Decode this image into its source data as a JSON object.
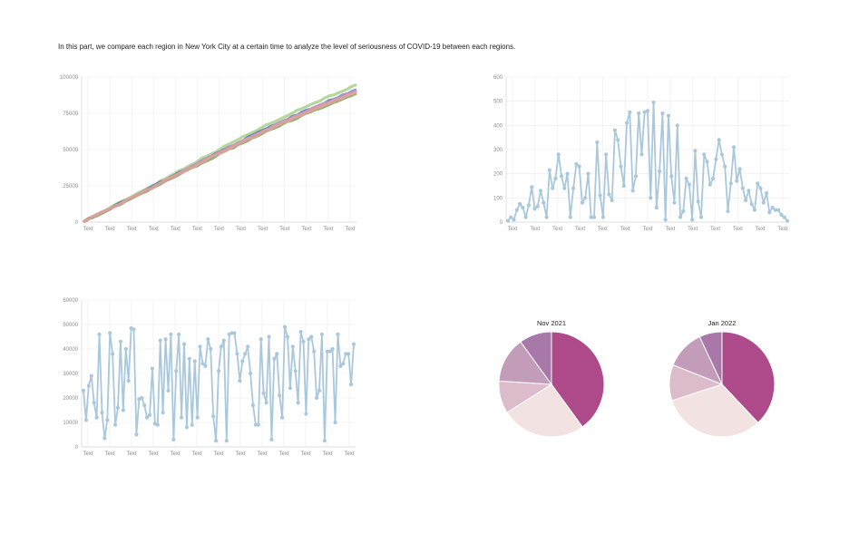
{
  "intro_text": "In this part, we compare each region in New York City at a certain time to analyze the level of seriousness of COVID-19 between each regions.",
  "chart_data": [
    {
      "type": "line",
      "x_tick_labels": [
        "Text",
        "Text",
        "Text",
        "Text",
        "Text",
        "Text",
        "Text",
        "Text",
        "Text",
        "Text",
        "Text",
        "Text",
        "Text"
      ],
      "y_ticks": [
        0,
        25000,
        50000,
        75000,
        100000
      ],
      "y_tick_labels": [
        "0",
        "25000",
        "50000",
        "75000",
        "100000"
      ],
      "ylim": [
        0,
        100000
      ],
      "grid": true,
      "n_points": 61,
      "series": [
        {
          "color": "#a8d08d",
          "start": 600,
          "end": 94500
        },
        {
          "color": "#4b74b3",
          "start": 400,
          "end": 91000
        },
        {
          "color": "#c89ac6",
          "start": 300,
          "end": 90500
        },
        {
          "color": "#7fa65a",
          "start": 200,
          "end": 88500
        },
        {
          "color": "#e8a0a0",
          "start": 500,
          "end": 89500
        }
      ]
    },
    {
      "type": "line",
      "x_tick_labels": [
        "Text",
        "Text",
        "Text",
        "Text",
        "Text",
        "Text",
        "Text",
        "Text",
        "Text",
        "Text",
        "Text",
        "Text",
        "Text"
      ],
      "y_ticks": [
        0,
        100,
        200,
        300,
        400,
        500,
        600
      ],
      "y_tick_labels": [
        "0",
        "100",
        "200",
        "300",
        "400",
        "500",
        "600"
      ],
      "ylim": [
        0,
        600
      ],
      "grid": true,
      "color": "#a9c8dc",
      "values": [
        5,
        20,
        10,
        50,
        75,
        60,
        20,
        70,
        145,
        55,
        65,
        130,
        80,
        20,
        215,
        140,
        180,
        280,
        190,
        140,
        200,
        20,
        140,
        240,
        230,
        80,
        100,
        200,
        20,
        20,
        330,
        110,
        20,
        280,
        115,
        90,
        380,
        340,
        230,
        150,
        410,
        455,
        130,
        190,
        450,
        280,
        455,
        460,
        100,
        495,
        60,
        210,
        450,
        10,
        440,
        190,
        80,
        400,
        20,
        45,
        180,
        155,
        10,
        295,
        85,
        20,
        280,
        250,
        155,
        180,
        260,
        340,
        280,
        230,
        45,
        160,
        310,
        170,
        220,
        140,
        90,
        130,
        75,
        50,
        160,
        140,
        80,
        120,
        40,
        60,
        50,
        50,
        30,
        20,
        5
      ]
    },
    {
      "type": "line",
      "x_tick_labels": [
        "Text",
        "Text",
        "Text",
        "Text",
        "Text",
        "Text",
        "Text",
        "Text",
        "Text",
        "Text",
        "Text",
        "Text",
        "Text"
      ],
      "y_ticks": [
        0,
        10000,
        20000,
        30000,
        40000,
        50000,
        60000
      ],
      "y_tick_labels": [
        "0",
        "10000",
        "20000",
        "30000",
        "40000",
        "50000",
        "60000"
      ],
      "ylim": [
        0,
        60000
      ],
      "grid": true,
      "color": "#a9c8dc",
      "values": [
        23000,
        11000,
        25000,
        29000,
        18000,
        12000,
        46000,
        14000,
        3500,
        11000,
        46500,
        38000,
        9000,
        16000,
        43000,
        15000,
        40000,
        27000,
        48500,
        48000,
        5000,
        19500,
        20000,
        17000,
        12000,
        13000,
        32000,
        9500,
        9000,
        43500,
        14000,
        44000,
        23000,
        46000,
        3000,
        31000,
        46000,
        12000,
        42000,
        8000,
        36000,
        9000,
        35000,
        12000,
        41000,
        34000,
        33000,
        44000,
        40000,
        12500,
        2500,
        31000,
        41000,
        43500,
        2500,
        46000,
        46500,
        46500,
        38000,
        27000,
        35000,
        38000,
        41000,
        30000,
        17000,
        9000,
        9000,
        44000,
        22000,
        18000,
        45000,
        3000,
        36000,
        38000,
        21000,
        12000,
        49000,
        45000,
        24000,
        41000,
        31000,
        18000,
        47000,
        43000,
        13500,
        44000,
        45000,
        39000,
        20000,
        23000,
        46000,
        2500,
        39000,
        39000,
        40000,
        10000,
        46000,
        33000,
        34000,
        38000,
        38000,
        25500,
        42000
      ],
      "value_labels": []
    },
    {
      "type": "pie",
      "title": "Nov 2021",
      "slices": [
        {
          "value": 40,
          "color": "#ae4a8a"
        },
        {
          "value": 26,
          "color": "#f2e2e2"
        },
        {
          "value": 10,
          "color": "#dcbcca"
        },
        {
          "value": 14,
          "color": "#c29cb8"
        },
        {
          "value": 10,
          "color": "#a878a8"
        }
      ]
    },
    {
      "type": "pie",
      "title": "Jan 2022",
      "slices": [
        {
          "value": 38,
          "color": "#ae4a8a"
        },
        {
          "value": 32,
          "color": "#f2e2e2"
        },
        {
          "value": 11,
          "color": "#dcbcca"
        },
        {
          "value": 12,
          "color": "#c29cb8"
        },
        {
          "value": 7,
          "color": "#a878a8"
        }
      ]
    }
  ]
}
